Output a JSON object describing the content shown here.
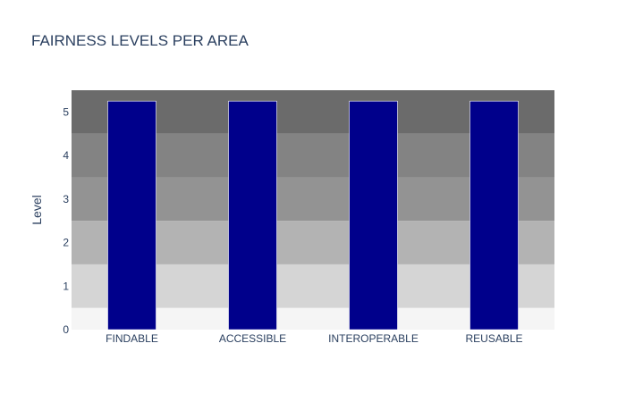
{
  "chart_data": {
    "type": "bar",
    "title": "FAIRNESS LEVELS PER AREA",
    "xlabel": "",
    "ylabel": "Level",
    "categories": [
      "FINDABLE",
      "ACCESSIBLE",
      "INTEROPERABLE",
      "REUSABLE"
    ],
    "values": [
      5.25,
      5.25,
      5.25,
      5.25
    ],
    "ylim": [
      0,
      5.5
    ],
    "yticks": [
      0,
      1,
      2,
      3,
      4,
      5
    ],
    "bar_color": "#00008b",
    "bar_outline_color": "#ffffff",
    "background_bands": [
      {
        "from": 0,
        "to": 0.5,
        "color": "#f5f5f5"
      },
      {
        "from": 0.5,
        "to": 1.5,
        "color": "#d5d5d5"
      },
      {
        "from": 1.5,
        "to": 2.5,
        "color": "#b3b3b3"
      },
      {
        "from": 2.5,
        "to": 3.5,
        "color": "#939393"
      },
      {
        "from": 3.5,
        "to": 4.5,
        "color": "#838383"
      },
      {
        "from": 4.5,
        "to": 5.5,
        "color": "#6b6b6b"
      }
    ],
    "grid": false,
    "legend": "none"
  }
}
